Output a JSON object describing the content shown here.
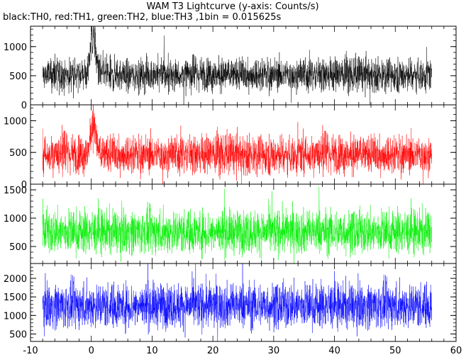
{
  "title": "WAM T3 Lightcurve (y-axis: Counts/s)",
  "subtitle": "black:TH0, red:TH1, green:TH2, blue:TH3 ,1bin = 0.015625s",
  "chart_data": {
    "type": "line",
    "title": "WAM T3 Lightcurve (y-axis: Counts/s)",
    "subtitle": "black:TH0, red:TH1, green:TH2, blue:TH3 ,1bin = 0.015625s",
    "xlim": [
      -10,
      60
    ],
    "x_ticks": [
      "-10",
      "0",
      "10",
      "20",
      "30",
      "40",
      "50",
      "60"
    ],
    "data_x_range": [
      -8,
      56
    ],
    "bin_size_s": 0.015625,
    "panels": [
      {
        "name": "TH0",
        "color": "#000000",
        "ylim": [
          0,
          1350
        ],
        "y_ticks": [
          "0",
          "500",
          "1000"
        ],
        "mean": 520,
        "spread": 140,
        "burst": {
          "t": 0.3,
          "peak": 1350
        }
      },
      {
        "name": "TH1",
        "color": "#ff0000",
        "ylim": [
          0,
          1250
        ],
        "y_ticks": [
          "0",
          "500",
          "1000"
        ],
        "mean": 470,
        "spread": 150,
        "burst": {
          "t": 0.3,
          "peak": 1050
        }
      },
      {
        "name": "TH2",
        "color": "#00ee00",
        "ylim": [
          200,
          1600
        ],
        "y_ticks": [
          "500",
          "1000",
          "1500"
        ],
        "mean": 760,
        "spread": 190,
        "burst": null
      },
      {
        "name": "TH3",
        "color": "#0000ff",
        "ylim": [
          300,
          2400
        ],
        "y_ticks": [
          "500",
          "1000",
          "1500",
          "2000"
        ],
        "mean": 1270,
        "spread": 300,
        "burst": null
      }
    ]
  }
}
